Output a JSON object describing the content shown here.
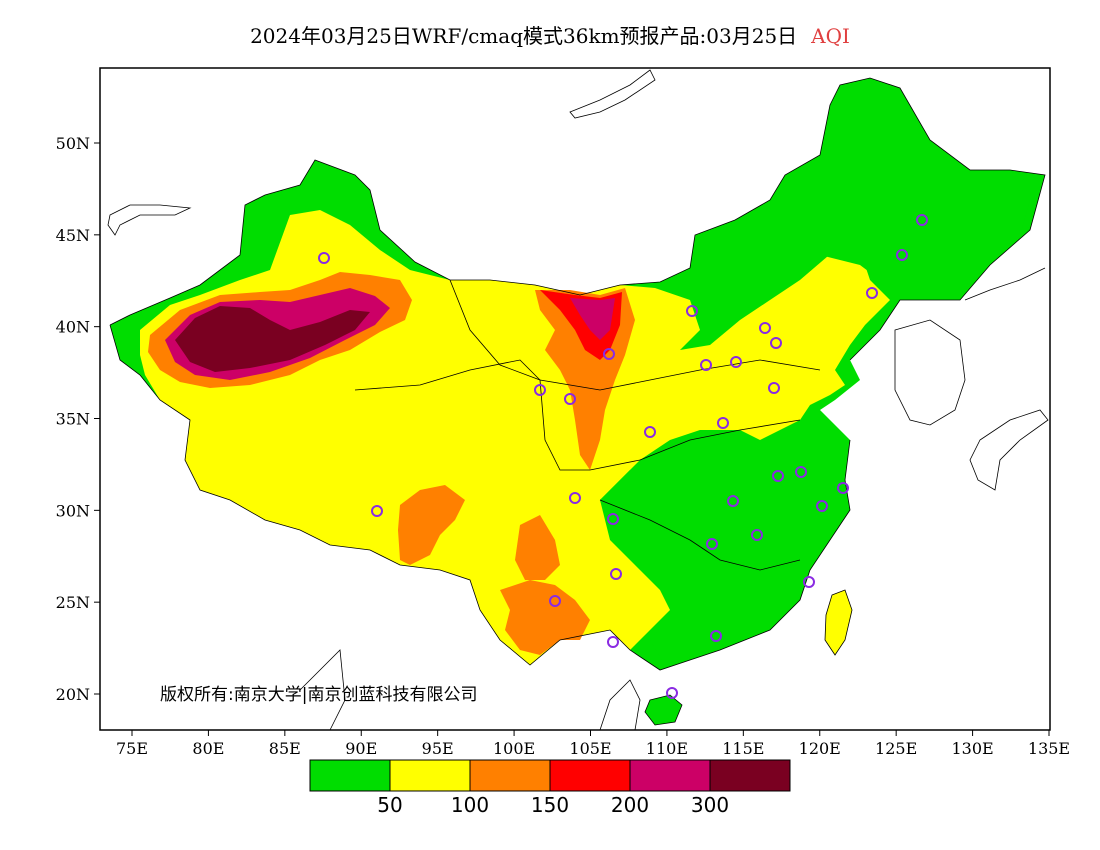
{
  "header": {
    "title": "2024年03月25日WRF/cmaq模式36km预报产品:03月25日",
    "variable": "AQI"
  },
  "map": {
    "lon_range": [
      73,
      135
    ],
    "lat_range": [
      18,
      54
    ],
    "x_ticks": [
      "75E",
      "80E",
      "85E",
      "90E",
      "95E",
      "100E",
      "105E",
      "110E",
      "115E",
      "120E",
      "125E",
      "130E",
      "135E"
    ],
    "y_ticks": [
      "50N",
      "45N",
      "40N",
      "35N",
      "30N",
      "25N",
      "20N"
    ],
    "copyright": "版权所有:南京大学|南京创蓝科技有限公司"
  },
  "legend": {
    "colors": [
      "#00dd00",
      "#ffff00",
      "#ff8000",
      "#ff0000",
      "#cc0066",
      "#7a0021"
    ],
    "labels": [
      "50",
      "100",
      "150",
      "200",
      "300"
    ]
  },
  "colors": {
    "good": "#00dd00",
    "moderate": "#ffff00",
    "sensitive": "#ff8000",
    "unhealthy": "#ff0000",
    "very_unhealthy": "#cc0066",
    "hazardous": "#7a0021",
    "city_marker": "#8a2be2"
  }
}
